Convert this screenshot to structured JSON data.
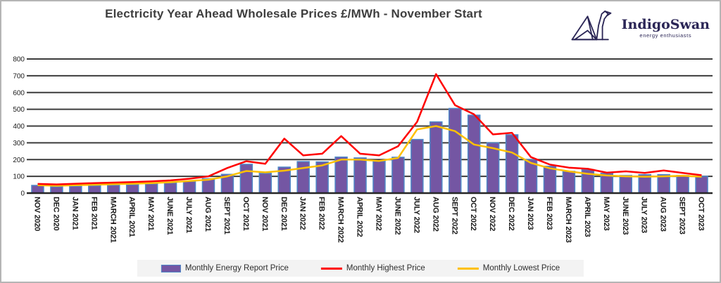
{
  "header": {
    "title": "Electricity Year Ahead Wholesale Prices £/MWh - November Start"
  },
  "logo": {
    "name": "IndigoSwan",
    "tagline": "energy enthusiasts",
    "color": "#2b2656"
  },
  "legend": {
    "items": [
      {
        "label": "Monthly Energy Report Price",
        "type": "bar",
        "color": "#7456a3",
        "edge": "#4e87c7"
      },
      {
        "label": "Monthly Highest Price",
        "type": "line",
        "color": "#ff0000"
      },
      {
        "label": "Monthly Lowest Price",
        "type": "line",
        "color": "#ffc000"
      }
    ]
  },
  "chart_data": {
    "type": "bar",
    "title": "Electricity Year Ahead Wholesale Prices £/MWh - November Start",
    "xlabel": "",
    "ylabel": "",
    "ylim": [
      0,
      800
    ],
    "yticks": [
      0,
      100,
      200,
      300,
      400,
      500,
      600,
      700,
      800
    ],
    "grid": "horizontal",
    "gridline_color": "#3c3c3c",
    "axis_line_color": "#262626",
    "tick_label_color": "#1a1a1a",
    "legend_position": "bottom",
    "categories": [
      "NOV 2020",
      "DEC 2020",
      "JAN 2021",
      "FEB 2021",
      "MARCH 2021",
      "APRIL 2021",
      "MAY 2021",
      "JUNE 2021",
      "JULY 2021",
      "AUG 2021",
      "SEPT 2021",
      "OCT 2021",
      "NOV 2021",
      "DEC 2021",
      "JAN 2022",
      "FEB 2022",
      "MARCH 2022",
      "APRIL 2022",
      "MAY 2022",
      "JUNE 2022",
      "JULY 2022",
      "AUG 2022",
      "SEPT 2022",
      "OCT 2022",
      "NOV 2022",
      "DEC 2022",
      "JAN 2023",
      "FEB 2023",
      "MARCH 2023",
      "APRIL 2023",
      "MAY 2023",
      "JUNE 2023",
      "JULY 2023",
      "AUG 2023",
      "SEPT 2023",
      "OCT 2023"
    ],
    "series": [
      {
        "name": "Monthly Energy Report Price",
        "type": "bar",
        "color": "#7456a3",
        "edge_color": "#4e87c7",
        "values": [
          46,
          38,
          41,
          44,
          47,
          50,
          55,
          61,
          70,
          86,
          112,
          172,
          118,
          155,
          188,
          186,
          215,
          210,
          190,
          214,
          320,
          425,
          505,
          465,
          300,
          348,
          200,
          160,
          130,
          140,
          118,
          105,
          110,
          110,
          105,
          100
        ]
      },
      {
        "name": "Monthly Highest Price",
        "type": "line",
        "color": "#ff0000",
        "values": [
          55,
          52,
          56,
          60,
          63,
          66,
          70,
          76,
          86,
          100,
          150,
          190,
          175,
          325,
          225,
          235,
          340,
          235,
          225,
          280,
          425,
          710,
          525,
          470,
          350,
          360,
          215,
          170,
          152,
          145,
          122,
          130,
          120,
          135,
          120,
          107
        ]
      },
      {
        "name": "Monthly Lowest Price",
        "type": "line",
        "color": "#ffc000",
        "values": [
          47,
          44,
          47,
          50,
          53,
          56,
          60,
          65,
          72,
          80,
          100,
          132,
          124,
          134,
          150,
          165,
          200,
          200,
          192,
          210,
          380,
          400,
          370,
          290,
          268,
          242,
          180,
          148,
          130,
          115,
          105,
          100,
          98,
          100,
          104,
          98
        ]
      }
    ]
  }
}
